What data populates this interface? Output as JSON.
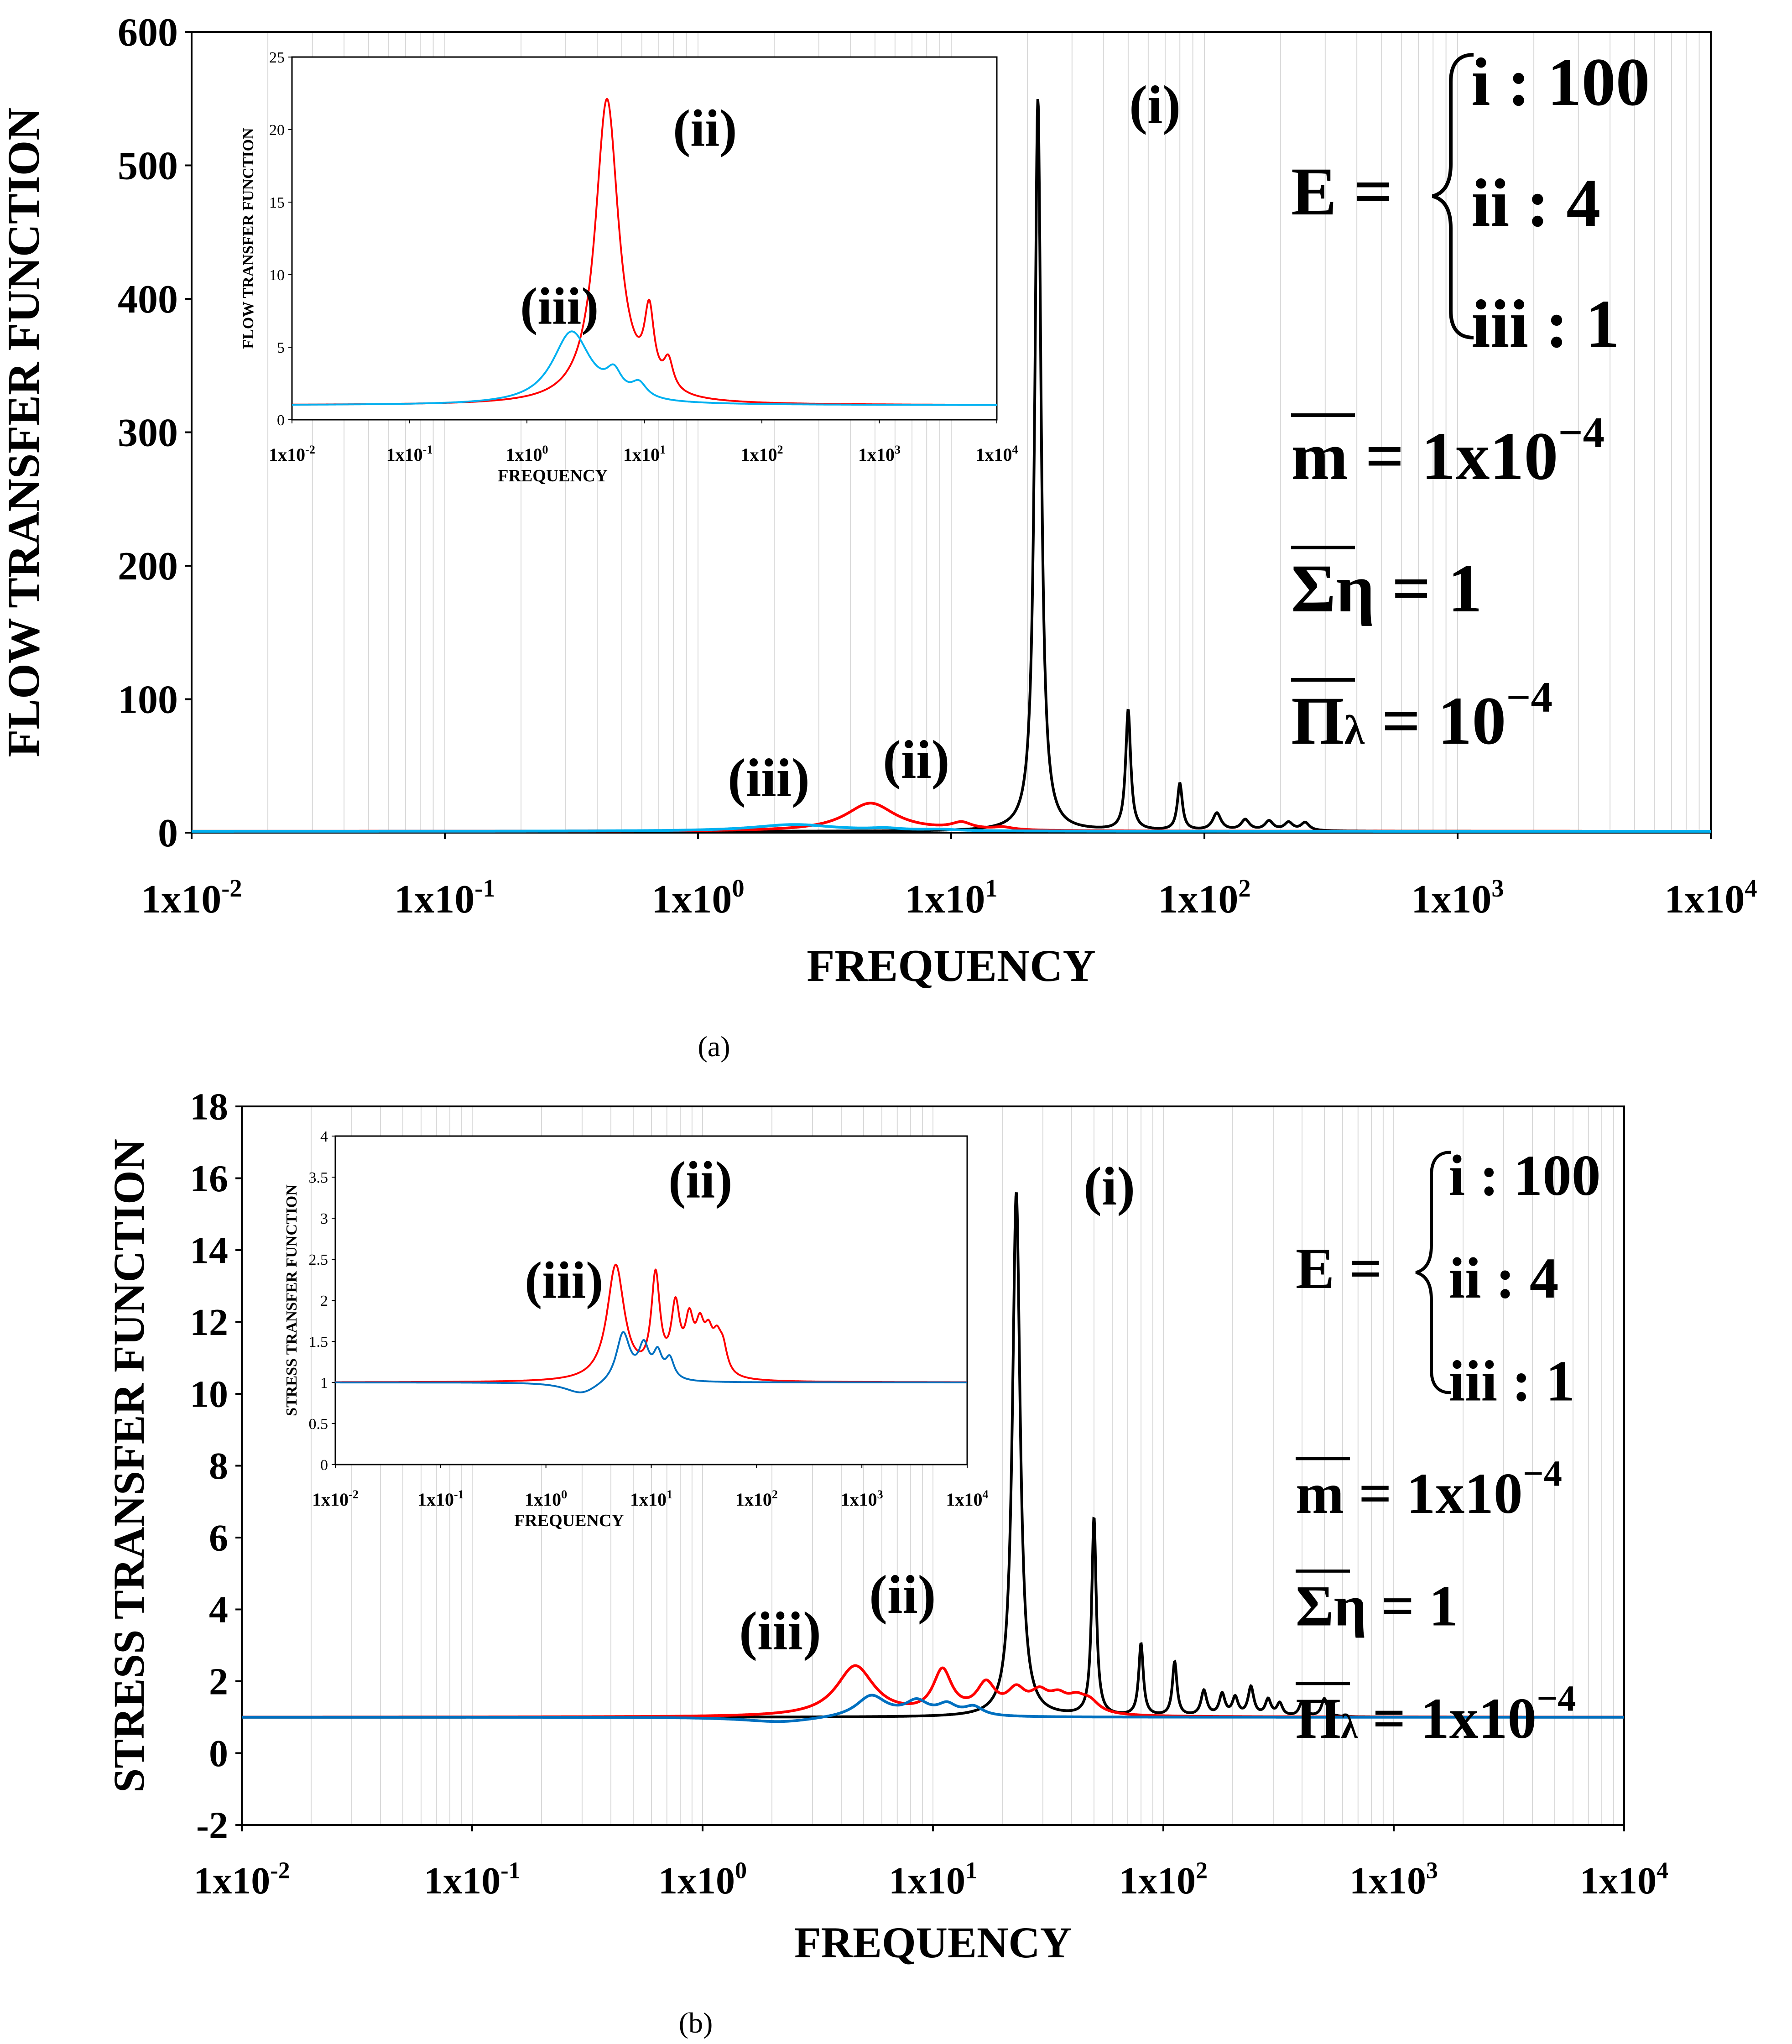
{
  "chart_data": [
    {
      "type": "line",
      "panel_label": "(a)",
      "title": "",
      "xlabel": "FREQUENCY",
      "ylabel": "FLOW TRANSFER FUNCTION",
      "xscale": "log",
      "xlim": [
        0.01,
        10000
      ],
      "ylim": [
        0,
        600
      ],
      "yticks": [
        0,
        100,
        200,
        300,
        400,
        500,
        600
      ],
      "xtick_labels": [
        {
          "base": "1x10",
          "exp": "-2"
        },
        {
          "base": "1x10",
          "exp": "-1"
        },
        {
          "base": "1x10",
          "exp": "0"
        },
        {
          "base": "1x10",
          "exp": "1"
        },
        {
          "base": "1x10",
          "exp": "2"
        },
        {
          "base": "1x10",
          "exp": "3"
        },
        {
          "base": "1x10",
          "exp": "4"
        }
      ],
      "legend_position": "right",
      "series": [
        {
          "name": "(i)",
          "E": 100,
          "color": "#000000",
          "baseline": 1,
          "peaks": [
            [
              22,
              550,
              0.015
            ],
            [
              50,
              90,
              0.012
            ],
            [
              80,
              35,
              0.012
            ],
            [
              112,
              13,
              0.02
            ],
            [
              145,
              8,
              0.02
            ],
            [
              180,
              7,
              0.02
            ],
            [
              215,
              6,
              0.02
            ],
            [
              250,
              6,
              0.02
            ]
          ]
        },
        {
          "name": "(ii)",
          "E": 4,
          "color": "#ff0000",
          "baseline": 1,
          "peaks": [
            [
              4.8,
              22,
              0.12
            ],
            [
              11,
              5,
              0.05
            ],
            [
              16,
              2,
              0.05
            ]
          ]
        },
        {
          "name": "(iii)",
          "E": 1,
          "color": "#00b0f0",
          "baseline": 1,
          "peaks": [
            [
              2.4,
              6,
              0.2
            ],
            [
              5.5,
              1.5,
              0.08
            ],
            [
              9,
              1,
              0.08
            ]
          ]
        }
      ],
      "annotations": {
        "labels": [
          "(i)",
          "(ii)",
          "(iii)"
        ],
        "equation": {
          "lhs": "E =",
          "cases": [
            "i : 100",
            "ii : 4",
            "iii : 1"
          ]
        },
        "params": [
          {
            "sym": "m",
            "rest": " = 1x10",
            "sup": "−4"
          },
          {
            "sym": "Σ",
            "rest": "η = 1",
            "sup": ""
          },
          {
            "sym": "Π",
            "sub": "λ",
            "rest": " = 10",
            "sup": "−4"
          }
        ]
      },
      "inset": {
        "xlabel": "FREQUENCY",
        "ylabel": "FLOW TRANSFER FUNCTION",
        "ylim": [
          0,
          25
        ],
        "yticks": [
          0,
          5,
          10,
          15,
          20,
          25
        ],
        "labels": [
          "(ii)",
          "(iii)"
        ]
      }
    },
    {
      "type": "line",
      "panel_label": "(b)",
      "title": "",
      "xlabel": "FREQUENCY",
      "ylabel": "STRESS TRANSFER FUNCTION",
      "xscale": "log",
      "xlim": [
        0.01,
        10000
      ],
      "ylim": [
        -2,
        18
      ],
      "yticks": [
        -2,
        0,
        2,
        4,
        6,
        8,
        10,
        12,
        14,
        16,
        18
      ],
      "xtick_labels": [
        {
          "base": "1x10",
          "exp": "-2"
        },
        {
          "base": "1x10",
          "exp": "-1"
        },
        {
          "base": "1x10",
          "exp": "0"
        },
        {
          "base": "1x10",
          "exp": "1"
        },
        {
          "base": "1x10",
          "exp": "2"
        },
        {
          "base": "1x10",
          "exp": "3"
        },
        {
          "base": "1x10",
          "exp": "4"
        }
      ],
      "legend_position": "right",
      "series": [
        {
          "name": "(i)",
          "E": 100,
          "color": "#000000",
          "baseline": 1,
          "peaks": [
            [
              23,
              15.6,
              0.02
            ],
            [
              50,
              5.5,
              0.012
            ],
            [
              80,
              2.0,
              0.012
            ],
            [
              112,
              1.5,
              0.012
            ],
            [
              150,
              0.7,
              0.015
            ],
            [
              180,
              0.6,
              0.015
            ],
            [
              205,
              0.5,
              0.015
            ],
            [
              240,
              0.8,
              0.015
            ],
            [
              285,
              0.45,
              0.015
            ],
            [
              320,
              0.35,
              0.015
            ],
            [
              400,
              0.4,
              0.015
            ],
            [
              500,
              0.5,
              0.015
            ]
          ]
        },
        {
          "name": "(ii)",
          "E": 4,
          "color": "#ff0000",
          "baseline": 1,
          "peaks": [
            [
              4.6,
              2.4,
              0.1
            ],
            [
              11,
              1.2,
              0.05
            ],
            [
              17,
              0.8,
              0.05
            ],
            [
              23,
              0.6,
              0.05
            ],
            [
              29,
              0.5,
              0.05
            ],
            [
              35,
              0.4,
              0.05
            ],
            [
              42,
              0.35,
              0.05
            ],
            [
              48,
              0.3,
              0.05
            ]
          ]
        },
        {
          "name": "(iii)",
          "E": 1,
          "color": "#0070c0",
          "baseline": 1,
          "peaks": [
            [
              2.2,
              0.85,
              0.2
            ],
            [
              5.4,
              0.6,
              0.08
            ],
            [
              8.5,
              0.4,
              0.06
            ],
            [
              11.5,
              0.3,
              0.05
            ],
            [
              15,
              0.25,
              0.05
            ]
          ]
        }
      ],
      "annotations": {
        "labels": [
          "(i)",
          "(ii)",
          "(iii)"
        ],
        "equation": {
          "lhs": "E =",
          "cases": [
            "i : 100",
            "ii : 4",
            "iii : 1"
          ]
        },
        "params": [
          {
            "sym": "m",
            "rest": " = 1x10",
            "sup": "−4"
          },
          {
            "sym": "Σ",
            "rest": "η = 1",
            "sup": ""
          },
          {
            "sym": "Π",
            "sub": "λ",
            "rest": " = 1x10",
            "sup": "−4"
          }
        ]
      },
      "inset": {
        "xlabel": "FREQUENCY",
        "ylabel": "STRESS TRANSFER FUNCTION",
        "ylim": [
          0,
          4
        ],
        "yticks": [
          0,
          0.5,
          1,
          1.5,
          2,
          2.5,
          3,
          3.5,
          4
        ],
        "labels": [
          "(ii)",
          "(iii)"
        ]
      }
    }
  ]
}
